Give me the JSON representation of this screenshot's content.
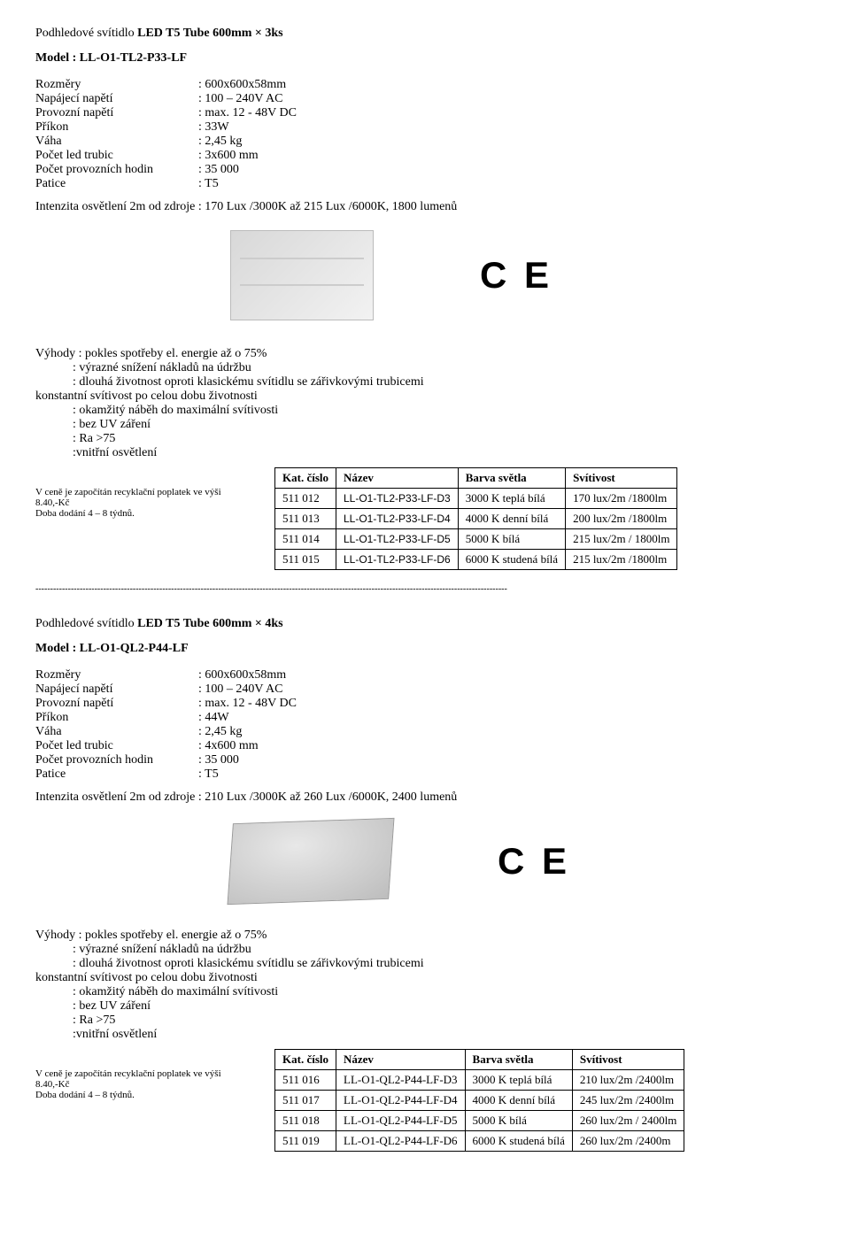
{
  "product1": {
    "title_prefix": "Podhledové svítidlo ",
    "title_bold": "LED T5 Tube  600mm × 3ks",
    "model_label": "Model : ",
    "model_value": "LL-O1-TL2-P33-LF",
    "specs": [
      {
        "label": "Rozměry",
        "value": ": 600x600x58mm"
      },
      {
        "label": "Napájecí napětí",
        "value": ": 100 – 240V AC"
      },
      {
        "label": "Provozní napětí",
        "value": ": max. 12 - 48V DC"
      },
      {
        "label": "Příkon",
        "value": ": 33W"
      },
      {
        "label": "Váha",
        "value": ": 2,45 kg"
      },
      {
        "label": "Počet led trubic",
        "value": ": 3x600 mm"
      },
      {
        "label": "Počet provozních hodin",
        "value": ": 35 000"
      },
      {
        "label": "Patice",
        "value": ":  T5"
      }
    ],
    "intensity_line": "Intenzita osvětlení 2m od zdroje : 170 Lux /3000K až 215 Lux /6000K, 1800 lumenů",
    "ce_text": "C E",
    "advantages_head": "Výhody : pokles spotřeby el. energie až o 75%",
    "advantages": [
      ": výrazné snížení nákladů na údržbu",
      ": dlouhá životnost oproti klasickému svítidlu se zářivkovými trubicemi"
    ],
    "adv_plain": "konstantní svítivost po celou dobu životnosti",
    "advantages2": [
      ": okamžitý náběh do maximální svítivosti",
      ": bez UV záření",
      ": Ra >75",
      ":vnitřní osvětlení"
    ],
    "note1": "V ceně je započítán recyklační poplatek ve výši",
    "note2": "8.40,-Kč",
    "note3": "Doba dodání 4 – 8 týdnů.",
    "table": {
      "headers": [
        "Kat. číslo",
        "Název",
        "Barva světla",
        "Svítivost"
      ],
      "rows": [
        [
          "511 012",
          "LL-O1-TL2-P33-LF-D3",
          "3000 K teplá bílá",
          "170 lux/2m    /1800lm"
        ],
        [
          "511 013",
          "LL-O1-TL2-P33-LF-D4",
          "4000 K denní bílá",
          "200 lux/2m    /1800lm"
        ],
        [
          "511 014",
          "LL-O1-TL2-P33-LF-D5",
          "5000 K  bílá",
          "215 lux/2m    / 1800lm"
        ],
        [
          "511 015",
          "LL-O1-TL2-P33-LF-D6",
          "6000 K studená bílá",
          "215 lux/2m    /1800lm"
        ]
      ]
    }
  },
  "separator": "----------------------------------------------------------------------------------------------------------------------------------------------------------------",
  "product2": {
    "title_prefix": "Podhledové svítidlo ",
    "title_bold": "LED T5 Tube  600mm × 4ks",
    "model_label": "Model : ",
    "model_value": "LL-O1-QL2-P44-LF",
    "specs": [
      {
        "label": "Rozměry",
        "value": ": 600x600x58mm"
      },
      {
        "label": "Napájecí napětí",
        "value": ": 100 – 240V AC"
      },
      {
        "label": "Provozní napětí",
        "value": ": max. 12 - 48V DC"
      },
      {
        "label": "Příkon",
        "value": ": 44W"
      },
      {
        "label": "Váha",
        "value": ": 2,45 kg"
      },
      {
        "label": "Počet led trubic",
        "value": ": 4x600 mm"
      },
      {
        "label": "Počet provozních hodin",
        "value": ": 35 000"
      },
      {
        "label": "Patice",
        "value": ":  T5"
      }
    ],
    "intensity_line": "Intenzita osvětlení 2m od zdroje : 210 Lux /3000K až 260 Lux /6000K, 2400 lumenů",
    "ce_text": "C E",
    "advantages_head": "Výhody : pokles spotřeby el. energie až o 75%",
    "advantages": [
      ": výrazné snížení nákladů na údržbu",
      ": dlouhá životnost oproti klasickému svítidlu se zářivkovými trubicemi"
    ],
    "adv_plain": "konstantní svítivost po celou dobu životnosti",
    "advantages2": [
      ": okamžitý náběh do maximální svítivosti",
      ": bez UV záření",
      ": Ra >75",
      ":vnitřní osvětlení"
    ],
    "note1": "V ceně je započítán recyklační poplatek ve výši",
    "note2": "8.40,-Kč",
    "note3": "Doba dodání 4 – 8 týdnů.",
    "table": {
      "headers": [
        "Kat. číslo",
        "Název",
        "Barva světla",
        "Svítivost"
      ],
      "rows": [
        [
          "511 016",
          "LL-O1-QL2-P44-LF-D3",
          "3000 K teplá bílá",
          "210 lux/2m    /2400lm"
        ],
        [
          "511 017",
          "LL-O1-QL2-P44-LF-D4",
          "4000 K denní bílá",
          "245 lux/2m    /2400lm"
        ],
        [
          "511 018",
          "LL-O1-QL2-P44-LF-D5",
          "5000 K  bílá",
          "260 lux/2m    / 2400lm"
        ],
        [
          "511 019",
          "LL-O1-QL2-P44-LF-D6",
          "6000 K studená bílá",
          "260 lux/2m    /2400m"
        ]
      ]
    }
  }
}
